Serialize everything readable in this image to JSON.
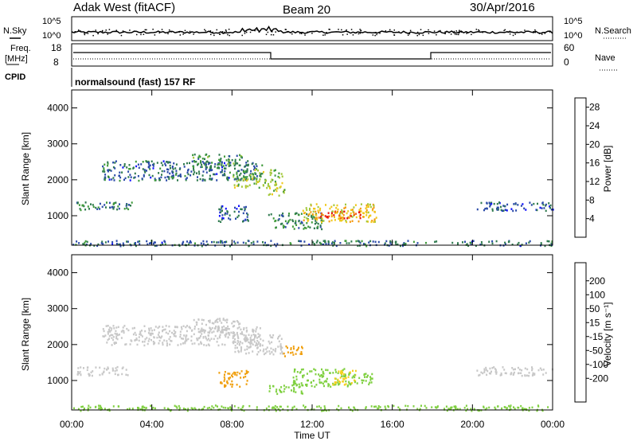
{
  "header": {
    "station": "Adak West (fitACF)",
    "beam": "Beam 20",
    "date": "30/Apr/2016"
  },
  "panels": {
    "nsky_label": "N.Sky",
    "nsearch_label": "N.Search",
    "freq_label_1": "Freq.",
    "freq_label_2": "[MHz]",
    "nave_label": "Nave",
    "cpid_label": "CPID",
    "cpid_text": "normalsound (fast) 157 RF",
    "noise_ticks": [
      "10^5",
      "10^0"
    ],
    "noise_ticks_right": [
      "10^5",
      "10^0"
    ],
    "freq_ticks": [
      "18",
      "8"
    ],
    "nave_ticks": [
      "60",
      "0"
    ]
  },
  "colors": {
    "power": [
      "#1010ff",
      "#2a4aa8",
      "#2f7a4e",
      "#3f9a3a",
      "#a3c83a",
      "#f0c81a",
      "#f59a10",
      "#f06010",
      "#e81010"
    ],
    "velocity": [
      "#ee1010",
      "#f05a10",
      "#f0a010",
      "#f5d020",
      "#c8c8c8",
      "#c8c8c8",
      "#7fd040",
      "#2a8a4a",
      "#2a4aa8",
      "#1a2ad0"
    ]
  },
  "chart_data": [
    {
      "type": "heatmap",
      "title": "",
      "xlabel": "Time UT",
      "ylabel": "Slant Range [km]",
      "xticks": [
        "00:00",
        "04:00",
        "08:00",
        "12:00",
        "16:00",
        "20:00",
        "00:00"
      ],
      "yticks": [
        "1000",
        "2000",
        "3000",
        "4000"
      ],
      "ylim": [
        180,
        4500
      ],
      "xlim_hours": [
        0,
        24
      ],
      "colorbar": {
        "label": "Power [dB]",
        "ticks": [
          "4",
          "8",
          "12",
          "16",
          "20",
          "24",
          "28"
        ],
        "range": [
          0,
          30
        ]
      },
      "regions": [
        {
          "t": [
            0.2,
            3.0
          ],
          "r": [
            1150,
            1400
          ],
          "v": 8
        },
        {
          "t": [
            1.5,
            9.5
          ],
          "r": [
            2000,
            2550
          ],
          "v": 7
        },
        {
          "t": [
            6.0,
            8.5
          ],
          "r": [
            2350,
            2750
          ],
          "v": 10
        },
        {
          "t": [
            8.0,
            10.5
          ],
          "r": [
            1800,
            2300
          ],
          "v": 14
        },
        {
          "t": [
            9.8,
            10.6
          ],
          "r": [
            1550,
            1800
          ],
          "v": 16
        },
        {
          "t": [
            7.3,
            8.8
          ],
          "r": [
            850,
            1300
          ],
          "v": 6
        },
        {
          "t": [
            9.8,
            12.5
          ],
          "r": [
            650,
            1100
          ],
          "v": 9
        },
        {
          "t": [
            11.5,
            15.2
          ],
          "r": [
            850,
            1350
          ],
          "v": 18
        },
        {
          "t": [
            12.2,
            14.5
          ],
          "r": [
            950,
            1150
          ],
          "v": 25
        },
        {
          "t": [
            20.2,
            24.0
          ],
          "r": [
            1150,
            1400
          ],
          "v": 6
        },
        {
          "t": [
            0.0,
            24.0
          ],
          "r": [
            180,
            330
          ],
          "v": 7
        }
      ]
    },
    {
      "type": "heatmap",
      "title": "",
      "xlabel": "Time UT",
      "ylabel": "Slant Range [km]",
      "xticks": [
        "00:00",
        "04:00",
        "08:00",
        "12:00",
        "16:00",
        "20:00",
        "00:00"
      ],
      "yticks": [
        "1000",
        "2000",
        "3000",
        "4000"
      ],
      "ylim": [
        180,
        4500
      ],
      "xlim_hours": [
        0,
        24
      ],
      "colorbar": {
        "label": "Velocity [m s⁻¹]",
        "ticks": [
          "200",
          "100",
          "50",
          "15",
          "-15",
          "-50",
          "-100",
          "-200"
        ],
        "range": [
          -250,
          250
        ]
      },
      "regions": [
        {
          "t": [
            0.2,
            3.0
          ],
          "r": [
            1150,
            1400
          ],
          "v": 0
        },
        {
          "t": [
            1.5,
            9.5
          ],
          "r": [
            2000,
            2550
          ],
          "v": 0
        },
        {
          "t": [
            6.0,
            8.5
          ],
          "r": [
            2350,
            2750
          ],
          "v": 0
        },
        {
          "t": [
            8.0,
            10.5
          ],
          "r": [
            1750,
            2300
          ],
          "v": 5
        },
        {
          "t": [
            7.3,
            8.8
          ],
          "r": [
            850,
            1300
          ],
          "v": -60
        },
        {
          "t": [
            10.5,
            11.5
          ],
          "r": [
            1700,
            2000
          ],
          "v": -60
        },
        {
          "t": [
            9.8,
            11.5
          ],
          "r": [
            650,
            900
          ],
          "v": 40
        },
        {
          "t": [
            11.0,
            14.0
          ],
          "r": [
            850,
            1350
          ],
          "v": 40
        },
        {
          "t": [
            13.0,
            14.2
          ],
          "r": [
            900,
            1300
          ],
          "v": -40
        },
        {
          "t": [
            14.0,
            15.0
          ],
          "r": [
            900,
            1250
          ],
          "v": 40
        },
        {
          "t": [
            20.2,
            24.0
          ],
          "r": [
            1150,
            1400
          ],
          "v": 0
        },
        {
          "t": [
            0.0,
            24.0
          ],
          "r": [
            180,
            330
          ],
          "v": 25
        }
      ]
    }
  ]
}
